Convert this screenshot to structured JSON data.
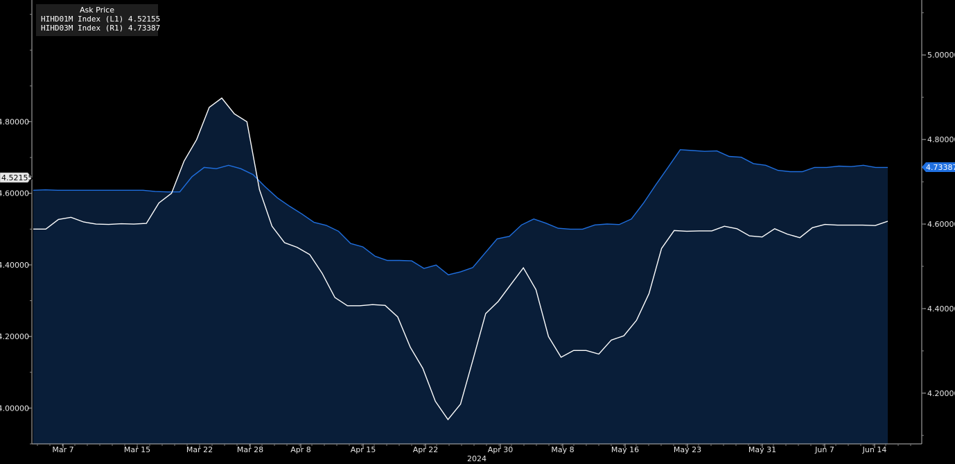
{
  "legend": {
    "title": "Ask Price",
    "items": [
      {
        "label": "HIHD01M Index  (L1) 4.52155",
        "color": "#ffffff"
      },
      {
        "label": "HIHD03M Index  (R1) 4.73387",
        "color": "#1f6fe0"
      }
    ]
  },
  "chart_data": {
    "type": "line",
    "year_label": "2024",
    "left_axis": {
      "ylim": [
        3.9,
        5.14
      ],
      "ticks": [
        4.0,
        4.2,
        4.4,
        4.6,
        4.8
      ],
      "tick_labels": [
        "4.00000",
        "4.20000",
        "4.40000",
        "4.60000",
        "4.80000"
      ],
      "last_value_label": "4.52155"
    },
    "right_axis": {
      "ylim": [
        4.08,
        5.13
      ],
      "ticks": [
        4.2,
        4.4,
        4.6,
        4.8,
        5.0
      ],
      "tick_labels": [
        "4.20000",
        "4.40000",
        "4.60000",
        "4.80000",
        "5.00000"
      ],
      "last_value_label": "4.73387"
    },
    "x_ticks": [
      "Mar 7",
      "Mar 15",
      "Mar 22",
      "Mar 28",
      "Apr 8",
      "Apr 15",
      "Apr 22",
      "Apr 30",
      "May 8",
      "May 16",
      "May 23",
      "May 31",
      "Jun 7",
      "Jun 14"
    ],
    "series": [
      {
        "name": "HIHD01M Index",
        "axis": "left",
        "color": "#ffffff",
        "values": [
          4.5,
          4.5,
          4.527,
          4.533,
          4.52,
          4.514,
          4.513,
          4.515,
          4.514,
          4.516,
          4.573,
          4.6,
          4.69,
          4.75,
          4.84,
          4.866,
          4.822,
          4.8,
          4.61,
          4.508,
          4.462,
          4.449,
          4.429,
          4.376,
          4.309,
          4.286,
          4.286,
          4.289,
          4.287,
          4.255,
          4.17,
          4.111,
          4.019,
          3.968,
          4.011,
          4.136,
          4.264,
          4.298,
          4.345,
          4.392,
          4.331,
          4.2,
          4.142,
          4.161,
          4.161,
          4.151,
          4.19,
          4.202,
          4.245,
          4.32,
          4.446,
          4.496,
          4.494,
          4.495,
          4.495,
          4.508,
          4.501,
          4.481,
          4.478,
          4.501,
          4.486,
          4.476,
          4.504,
          4.513,
          4.511,
          4.511,
          4.511,
          4.51,
          4.522
        ]
      },
      {
        "name": "HIHD03M Index",
        "axis": "right",
        "color": "#1f6fe0",
        "values": [
          4.68,
          4.681,
          4.68,
          4.68,
          4.68,
          4.68,
          4.68,
          4.68,
          4.68,
          4.68,
          4.677,
          4.676,
          4.676,
          4.712,
          4.734,
          4.731,
          4.739,
          4.731,
          4.717,
          4.688,
          4.662,
          4.642,
          4.624,
          4.604,
          4.597,
          4.583,
          4.554,
          4.546,
          4.524,
          4.514,
          4.514,
          4.513,
          4.495,
          4.503,
          4.48,
          4.487,
          4.497,
          4.531,
          4.565,
          4.571,
          4.598,
          4.612,
          4.602,
          4.59,
          4.588,
          4.588,
          4.598,
          4.6,
          4.599,
          4.612,
          4.65,
          4.693,
          4.734,
          4.776,
          4.774,
          4.772,
          4.773,
          4.76,
          4.758,
          4.743,
          4.739,
          4.727,
          4.724,
          4.724,
          4.734,
          4.734,
          4.737,
          4.736,
          4.739,
          4.734,
          4.734
        ]
      }
    ]
  }
}
